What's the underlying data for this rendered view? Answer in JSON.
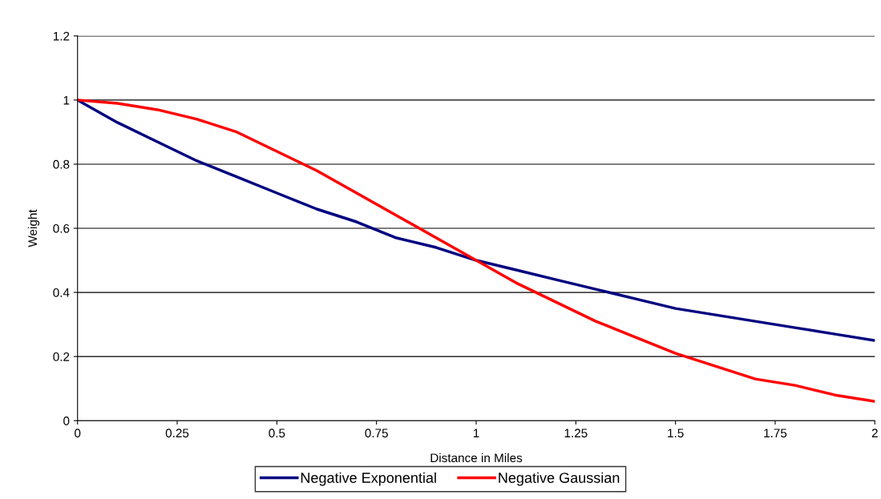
{
  "chart_data": {
    "type": "line",
    "xlabel": "Distance in Miles",
    "ylabel": "Weight",
    "x": [
      0,
      0.1,
      0.2,
      0.3,
      0.4,
      0.5,
      0.6,
      0.7,
      0.8,
      0.9,
      1,
      1.1,
      1.2,
      1.3,
      1.4,
      1.5,
      1.6,
      1.7,
      1.8,
      1.9,
      2
    ],
    "series": [
      {
        "name": "Negative Exponential",
        "color": "#000080",
        "values": [
          1,
          0.93,
          0.87,
          0.81,
          0.76,
          0.71,
          0.66,
          0.62,
          0.57,
          0.54,
          0.5,
          0.47,
          0.44,
          0.41,
          0.38,
          0.35,
          0.33,
          0.31,
          0.29,
          0.27,
          0.25
        ]
      },
      {
        "name": "Negative Gaussian",
        "color": "#ff0000",
        "values": [
          1,
          0.99,
          0.97,
          0.94,
          0.9,
          0.84,
          0.78,
          0.71,
          0.64,
          0.57,
          0.5,
          0.43,
          0.37,
          0.31,
          0.26,
          0.21,
          0.17,
          0.13,
          0.11,
          0.08,
          0.06
        ]
      }
    ],
    "xlim": [
      0,
      2
    ],
    "xticks": [
      0,
      0.25,
      0.5,
      0.75,
      1,
      1.25,
      1.5,
      1.75,
      2
    ],
    "ylim": [
      0,
      1.2
    ],
    "yticks": [
      0,
      0.2,
      0.4,
      0.6,
      0.8,
      1,
      1.2
    ],
    "grid": "y",
    "legend": "bottom",
    "marker": "none",
    "line_style": "solid"
  }
}
